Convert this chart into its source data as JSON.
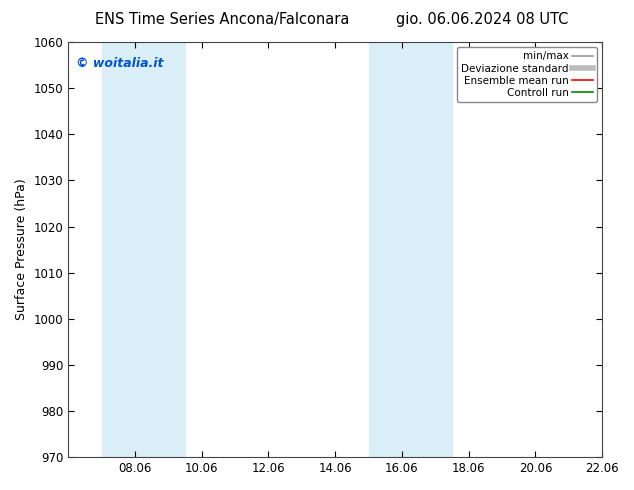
{
  "title_left": "ENS Time Series Ancona/Falconara",
  "title_right": "gio. 06.06.2024 08 UTC",
  "ylabel": "Surface Pressure (hPa)",
  "ylim": [
    970,
    1060
  ],
  "yticks": [
    970,
    980,
    990,
    1000,
    1010,
    1020,
    1030,
    1040,
    1050,
    1060
  ],
  "xlim": [
    0,
    16
  ],
  "xtick_positions": [
    2,
    4,
    6,
    8,
    10,
    12,
    14,
    16
  ],
  "xtick_labels": [
    "08.06",
    "10.06",
    "12.06",
    "14.06",
    "16.06",
    "18.06",
    "20.06",
    "22.06"
  ],
  "shaded_bands": [
    {
      "xmin": 1.0,
      "xmax": 3.5
    },
    {
      "xmin": 9.0,
      "xmax": 11.5
    }
  ],
  "watermark": "© woitalia.it",
  "watermark_color": "#0055cc",
  "background_color": "#ffffff",
  "plot_bg_color": "#ffffff",
  "band_color": "#daeef8",
  "legend_items": [
    {
      "label": "min/max",
      "color": "#999999",
      "lw": 1.2
    },
    {
      "label": "Deviazione standard",
      "color": "#bbbbbb",
      "lw": 4
    },
    {
      "label": "Ensemble mean run",
      "color": "#ff0000",
      "lw": 1.2
    },
    {
      "label": "Controll run",
      "color": "#008800",
      "lw": 1.2
    }
  ],
  "title_fontsize": 10.5,
  "ylabel_fontsize": 9,
  "tick_fontsize": 8.5,
  "legend_fontsize": 7.5,
  "watermark_fontsize": 9
}
